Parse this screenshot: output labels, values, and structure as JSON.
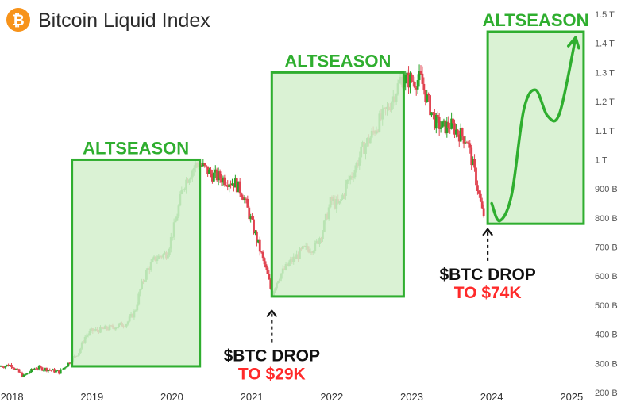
{
  "header": {
    "title": "Bitcoin Liquid Index",
    "icon": "bitcoin-logo-icon",
    "icon_color": "#f7931a"
  },
  "colors": {
    "up": "#27a327",
    "down": "#e0424f",
    "zone_fill": "#d3f0cc",
    "zone_stroke": "#2fae2f",
    "drop_text": "#111111",
    "drop_value": "#ff2a2a"
  },
  "chart_data": {
    "type": "candlestick",
    "x_ticks": [
      "2018",
      "2019",
      "2020",
      "2021",
      "2022",
      "2023",
      "2024",
      "2025"
    ],
    "y_ticks": [
      "1.5 T",
      "1.4 T",
      "1.3 T",
      "1.2 T",
      "1.1 T",
      "1 T",
      "900 B",
      "800 B",
      "700 B",
      "600 B",
      "500 B",
      "400 B",
      "300 B",
      "200 B"
    ],
    "y_tick_values": [
      1500,
      1400,
      1300,
      1200,
      1100,
      1000,
      900,
      800,
      700,
      600,
      500,
      400,
      300,
      200
    ],
    "xlim": [
      2017.85,
      2025.25
    ],
    "ylim": [
      200,
      1500
    ],
    "y_unit": "B",
    "path": [
      [
        2017.85,
        290
      ],
      [
        2018.0,
        295
      ],
      [
        2018.15,
        255
      ],
      [
        2018.3,
        285
      ],
      [
        2018.45,
        280
      ],
      [
        2018.6,
        270
      ],
      [
        2018.75,
        310
      ],
      [
        2018.85,
        340
      ],
      [
        2018.92,
        390
      ],
      [
        2019.0,
        410
      ],
      [
        2019.2,
        420
      ],
      [
        2019.35,
        430
      ],
      [
        2019.45,
        440
      ],
      [
        2019.55,
        480
      ],
      [
        2019.62,
        560
      ],
      [
        2019.7,
        620
      ],
      [
        2019.8,
        660
      ],
      [
        2019.95,
        680
      ],
      [
        2020.05,
        780
      ],
      [
        2020.15,
        910
      ],
      [
        2020.25,
        960
      ],
      [
        2020.33,
        990
      ],
      [
        2020.4,
        975
      ],
      [
        2020.5,
        950
      ],
      [
        2020.65,
        935
      ],
      [
        2020.8,
        920
      ],
      [
        2020.9,
        880
      ],
      [
        2021.0,
        790
      ],
      [
        2021.1,
        700
      ],
      [
        2021.2,
        610
      ],
      [
        2021.26,
        540
      ],
      [
        2021.35,
        600
      ],
      [
        2021.5,
        650
      ],
      [
        2021.65,
        690
      ],
      [
        2021.8,
        700
      ],
      [
        2021.9,
        760
      ],
      [
        2022.0,
        860
      ],
      [
        2022.1,
        840
      ],
      [
        2022.2,
        920
      ],
      [
        2022.3,
        970
      ],
      [
        2022.4,
        1040
      ],
      [
        2022.5,
        1080
      ],
      [
        2022.6,
        1130
      ],
      [
        2022.7,
        1170
      ],
      [
        2022.8,
        1230
      ],
      [
        2022.88,
        1280
      ],
      [
        2022.95,
        1275
      ],
      [
        2023.05,
        1270
      ],
      [
        2023.12,
        1280
      ],
      [
        2023.2,
        1210
      ],
      [
        2023.3,
        1130
      ],
      [
        2023.4,
        1110
      ],
      [
        2023.5,
        1120
      ],
      [
        2023.6,
        1090
      ],
      [
        2023.7,
        1070
      ],
      [
        2023.8,
        950
      ],
      [
        2023.9,
        810
      ]
    ],
    "zones": [
      {
        "label": "ALTSEASON",
        "x": [
          2018.75,
          2020.35
        ],
        "y": [
          290,
          1000
        ]
      },
      {
        "label": "ALTSEASON",
        "x": [
          2021.25,
          2022.9
        ],
        "y": [
          530,
          1300
        ]
      },
      {
        "label": "ALTSEASON",
        "x": [
          2023.95,
          2025.15
        ],
        "y": [
          780,
          1440
        ]
      }
    ],
    "projection": [
      [
        2024.0,
        850
      ],
      [
        2024.1,
        790
      ],
      [
        2024.25,
        880
      ],
      [
        2024.4,
        1170
      ],
      [
        2024.55,
        1240
      ],
      [
        2024.7,
        1150
      ],
      [
        2024.85,
        1160
      ],
      [
        2025.05,
        1420
      ]
    ],
    "annotations": [
      {
        "line1": "$BTC DROP",
        "line2": "TO $29K",
        "x": 2021.25,
        "y": 520
      },
      {
        "line1": "$BTC DROP",
        "line2": "TO $74K",
        "x": 2023.95,
        "y": 800
      }
    ]
  }
}
